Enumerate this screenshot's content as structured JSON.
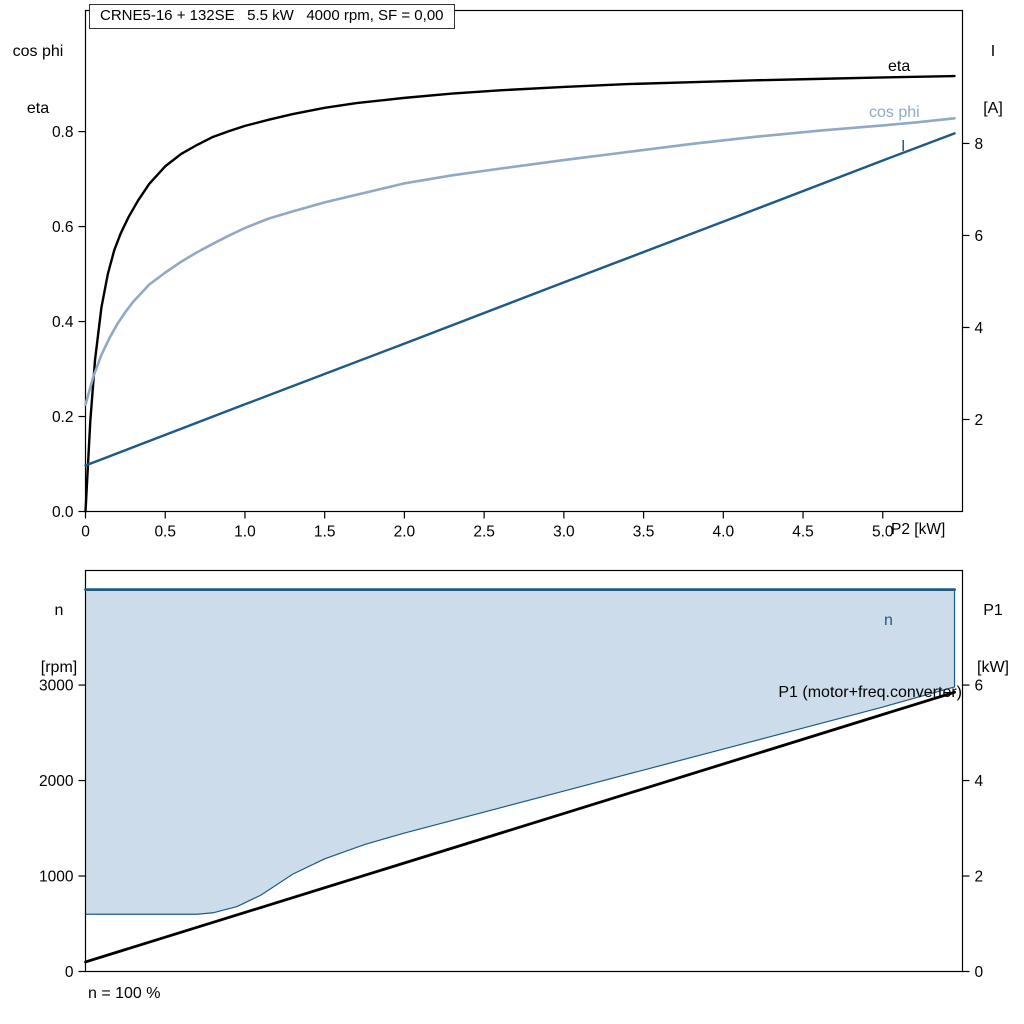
{
  "colors": {
    "black": "#000000",
    "dark_blue": "#1d5a85",
    "light_blue": "#8fa9c6",
    "fill_blue": "#cddcea",
    "axis": "#000000"
  },
  "labels": {
    "top_left_axis_line1": "cos phi",
    "top_left_axis_line2": "eta",
    "top_right_axis_line1": "I",
    "top_right_axis_line2": "[A]",
    "bottom_left_axis_line1": "n",
    "bottom_left_axis_line2": "[rpm]",
    "bottom_right_axis_line1": "P1",
    "bottom_right_axis_line2": "[kW]",
    "x_axis_label": "P2 [kW]",
    "curve_eta": "eta",
    "curve_cosphi": "cos phi",
    "curve_I": "I",
    "curve_n": "n",
    "curve_p1": "P1 (motor+freq.converter)",
    "footnote": "n = 100 %"
  },
  "chart_data": [
    {
      "id": "top-chart",
      "type": "line",
      "title": "CRNE5-16 + 132SE   5.5 kW   4000 rpm, SF = 0,00",
      "x_axis": {
        "label": "P2 [kW]",
        "min": 0,
        "max": 5.5,
        "ticks": [
          0,
          0.5,
          1.0,
          1.5,
          2.0,
          2.5,
          3.0,
          3.5,
          4.0,
          4.5,
          5.0
        ],
        "tick_labels": [
          "0",
          "0.5",
          "1.0",
          "1.5",
          "2.0",
          "2.5",
          "3.0",
          "3.5",
          "4.0",
          "4.5",
          "5.0"
        ]
      },
      "y_left": {
        "label": "cos phi / eta",
        "min": 0,
        "max": 1.055,
        "ticks": [
          0.0,
          0.2,
          0.4,
          0.6,
          0.8
        ],
        "tick_labels": [
          "0.0",
          "0.2",
          "0.4",
          "0.6",
          "0.8"
        ]
      },
      "y_right": {
        "label": "I [A]",
        "min": 0,
        "max": 10.89,
        "ticks": [
          2,
          4,
          6,
          8
        ],
        "tick_labels": [
          "2",
          "4",
          "6",
          "8"
        ]
      },
      "series": [
        {
          "name": "eta",
          "axis": "left",
          "color_key": "black",
          "width": 2.4,
          "points": [
            [
              0,
              0
            ],
            [
              0.03,
              0.19
            ],
            [
              0.06,
              0.32
            ],
            [
              0.1,
              0.43
            ],
            [
              0.14,
              0.5
            ],
            [
              0.18,
              0.55
            ],
            [
              0.22,
              0.585
            ],
            [
              0.27,
              0.62
            ],
            [
              0.33,
              0.655
            ],
            [
              0.4,
              0.69
            ],
            [
              0.5,
              0.727
            ],
            [
              0.6,
              0.753
            ],
            [
              0.7,
              0.772
            ],
            [
              0.8,
              0.789
            ],
            [
              0.9,
              0.801
            ],
            [
              1.0,
              0.812
            ],
            [
              1.15,
              0.825
            ],
            [
              1.3,
              0.837
            ],
            [
              1.5,
              0.85
            ],
            [
              1.7,
              0.86
            ],
            [
              2.0,
              0.871
            ],
            [
              2.3,
              0.88
            ],
            [
              2.6,
              0.887
            ],
            [
              3.0,
              0.894
            ],
            [
              3.4,
              0.9
            ],
            [
              3.8,
              0.904
            ],
            [
              4.2,
              0.908
            ],
            [
              4.6,
              0.911
            ],
            [
              5.0,
              0.914
            ],
            [
              5.45,
              0.917
            ]
          ]
        },
        {
          "name": "cos phi",
          "axis": "left",
          "color_key": "light_blue",
          "width": 2.6,
          "points": [
            [
              0,
              0.225
            ],
            [
              0.05,
              0.285
            ],
            [
              0.1,
              0.33
            ],
            [
              0.15,
              0.365
            ],
            [
              0.2,
              0.395
            ],
            [
              0.25,
              0.42
            ],
            [
              0.3,
              0.442
            ],
            [
              0.4,
              0.478
            ],
            [
              0.5,
              0.503
            ],
            [
              0.6,
              0.526
            ],
            [
              0.7,
              0.546
            ],
            [
              0.8,
              0.564
            ],
            [
              0.9,
              0.581
            ],
            [
              1.0,
              0.597
            ],
            [
              1.15,
              0.617
            ],
            [
              1.3,
              0.632
            ],
            [
              1.5,
              0.651
            ],
            [
              1.7,
              0.667
            ],
            [
              2.0,
              0.691
            ],
            [
              2.3,
              0.708
            ],
            [
              2.6,
              0.722
            ],
            [
              3.0,
              0.74
            ],
            [
              3.4,
              0.757
            ],
            [
              3.8,
              0.774
            ],
            [
              4.2,
              0.789
            ],
            [
              4.6,
              0.802
            ],
            [
              5.0,
              0.813
            ],
            [
              5.2,
              0.819
            ],
            [
              5.45,
              0.828
            ]
          ]
        },
        {
          "name": "I",
          "axis": "right",
          "color_key": "dark_blue",
          "width": 2.4,
          "points": [
            [
              0,
              1.0
            ],
            [
              1.0,
              2.33
            ],
            [
              2.0,
              3.65
            ],
            [
              3.0,
              4.98
            ],
            [
              4.0,
              6.3
            ],
            [
              5.0,
              7.63
            ],
            [
              5.45,
              8.22
            ]
          ]
        }
      ]
    },
    {
      "id": "bottom-chart",
      "type": "line",
      "title": "",
      "x_axis": {
        "label": "",
        "min": 0,
        "max": 5.5,
        "ticks": [],
        "tick_labels": null
      },
      "y_left": {
        "label": "n [rpm]",
        "min": 0,
        "max": 4200,
        "ticks": [
          0,
          1000,
          2000,
          3000
        ],
        "tick_labels": [
          "0",
          "1000",
          "2000",
          "3000"
        ]
      },
      "y_right": {
        "label": "P1 [kW]",
        "min": 0,
        "max": 8.4,
        "ticks": [
          0,
          2,
          4,
          6
        ],
        "tick_labels": [
          "0",
          "2",
          "4",
          "6"
        ]
      },
      "fill_region": {
        "description": "speed operating envelope, n = 100 %",
        "color_key": "fill_blue",
        "border_color_key": "dark_blue",
        "upper_rpm": 4000,
        "boundary": [
          [
            0,
            600
          ],
          [
            0.7,
            600
          ],
          [
            0.8,
            615
          ],
          [
            0.95,
            680
          ],
          [
            1.1,
            800
          ],
          [
            1.3,
            1020
          ],
          [
            1.5,
            1180
          ],
          [
            1.75,
            1330
          ],
          [
            2.0,
            1450
          ],
          [
            2.5,
            1670
          ],
          [
            3.0,
            1890
          ],
          [
            3.5,
            2110
          ],
          [
            4.0,
            2330
          ],
          [
            4.5,
            2550
          ],
          [
            5.0,
            2770
          ],
          [
            5.45,
            2980
          ]
        ]
      },
      "series": [
        {
          "name": "n",
          "axis": "left",
          "color_key": "dark_blue",
          "width": 2.8,
          "points": [
            [
              0,
              4000
            ],
            [
              5.45,
              4000
            ]
          ]
        },
        {
          "name": "P1 (motor+freq.converter)",
          "axis": "right",
          "color_key": "black",
          "width": 2.8,
          "points": [
            [
              0,
              0.2
            ],
            [
              5.45,
              5.85
            ]
          ]
        }
      ]
    }
  ]
}
